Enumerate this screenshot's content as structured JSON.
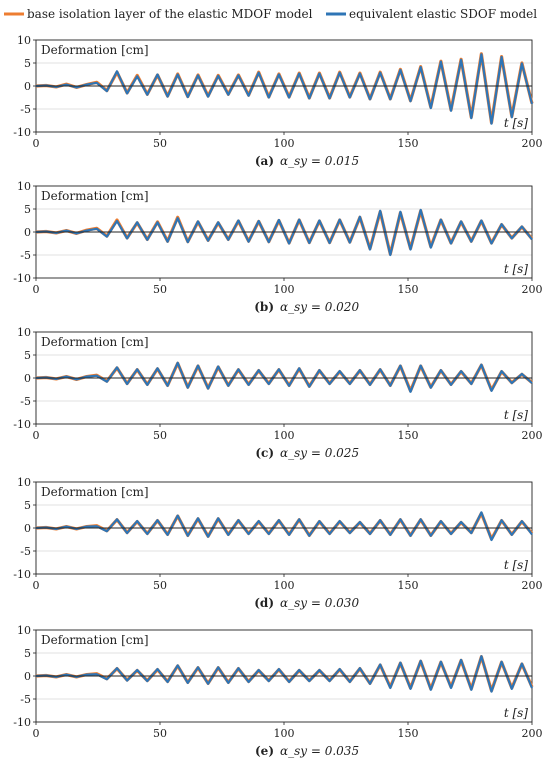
{
  "legend": {
    "series1_label": "base isolation layer of the elastic MDOF model",
    "series2_label": "equivalent elastic SDOF model"
  },
  "colors": {
    "series1": "#ed7d31",
    "series2": "#2e75b6",
    "axis": "#222222",
    "grid": "#d9d9d9"
  },
  "chart_data": [
    {
      "type": "line",
      "panel_label": "Deformation [cm]",
      "time_label": "t [s]",
      "caption_letter": "(a)",
      "caption_param": "α_sy = 0.015",
      "xlim": [
        0,
        200
      ],
      "ylim": [
        -10,
        10
      ],
      "xticks": [
        0,
        50,
        100,
        150,
        200
      ],
      "yticks": [
        10,
        5,
        0,
        -5,
        -10
      ],
      "series": [
        {
          "values": [
            0.0,
            0.1,
            -0.2,
            0.4,
            -0.3,
            0.3,
            0.8,
            -1.0,
            3.0,
            -1.5,
            2.3,
            -1.8,
            2.4,
            -2.2,
            2.6,
            -2.3,
            2.4,
            -2.2,
            2.3,
            -1.8,
            2.4,
            -2.0,
            3.0,
            -2.4,
            2.6,
            -2.4,
            2.8,
            -2.6,
            2.8,
            -2.6,
            3.0,
            -2.4,
            2.8,
            -2.8,
            3.0,
            -2.8,
            3.6,
            -3.2,
            4.2,
            -4.6,
            5.4,
            -5.2,
            5.8,
            -6.8,
            7.0,
            -8.0,
            6.4,
            -6.6,
            5.0,
            -3.8
          ]
        },
        {
          "values": [
            0.0,
            0.1,
            -0.2,
            0.3,
            -0.3,
            0.3,
            0.7,
            -1.1,
            3.2,
            -1.6,
            2.1,
            -1.9,
            2.5,
            -2.3,
            2.5,
            -2.4,
            2.3,
            -2.3,
            2.2,
            -1.9,
            2.3,
            -2.1,
            2.9,
            -2.5,
            2.5,
            -2.5,
            2.7,
            -2.7,
            2.7,
            -2.7,
            2.9,
            -2.5,
            2.7,
            -2.9,
            2.9,
            -2.9,
            3.5,
            -3.3,
            4.1,
            -4.8,
            5.3,
            -5.4,
            5.7,
            -7.0,
            6.9,
            -8.2,
            6.3,
            -6.8,
            4.9,
            -3.9
          ]
        }
      ]
    },
    {
      "type": "line",
      "panel_label": "Deformation [cm]",
      "time_label": "t [s]",
      "caption_letter": "(b)",
      "caption_param": "α_sy = 0.020",
      "xlim": [
        0,
        200
      ],
      "ylim": [
        -10,
        10
      ],
      "xticks": [
        0,
        50,
        100,
        150,
        200
      ],
      "yticks": [
        10,
        5,
        0,
        -5,
        -10
      ],
      "series": [
        {
          "values": [
            0.0,
            0.1,
            -0.2,
            0.3,
            -0.3,
            0.4,
            0.8,
            -0.9,
            2.6,
            -1.3,
            2.0,
            -1.6,
            2.2,
            -2.0,
            3.2,
            -2.1,
            2.2,
            -1.8,
            2.0,
            -1.6,
            2.4,
            -2.0,
            2.3,
            -2.1,
            2.5,
            -2.4,
            2.6,
            -2.3,
            2.4,
            -2.3,
            2.6,
            -2.2,
            3.2,
            -3.6,
            4.4,
            -4.8,
            4.2,
            -3.6,
            4.6,
            -3.2,
            2.6,
            -2.4,
            2.2,
            -2.0,
            2.4,
            -2.4,
            1.6,
            -1.3,
            1.1,
            -1.5
          ]
        },
        {
          "values": [
            0.0,
            0.1,
            -0.2,
            0.3,
            -0.3,
            0.3,
            0.7,
            -1.0,
            2.4,
            -1.4,
            2.1,
            -1.7,
            2.1,
            -2.1,
            3.0,
            -2.2,
            2.3,
            -1.9,
            2.1,
            -1.7,
            2.5,
            -2.1,
            2.4,
            -2.2,
            2.6,
            -2.5,
            2.7,
            -2.4,
            2.5,
            -2.4,
            2.7,
            -2.3,
            3.3,
            -3.8,
            4.6,
            -5.0,
            4.4,
            -3.8,
            4.8,
            -3.4,
            2.7,
            -2.5,
            2.3,
            -2.1,
            2.5,
            -2.5,
            1.7,
            -1.4,
            1.2,
            -1.6
          ]
        }
      ]
    },
    {
      "type": "line",
      "panel_label": "Deformation [cm]",
      "time_label": "t [s]",
      "caption_letter": "(c)",
      "caption_param": "α_sy = 0.025",
      "xlim": [
        0,
        200
      ],
      "ylim": [
        -10,
        10
      ],
      "xticks": [
        0,
        50,
        100,
        150,
        200
      ],
      "yticks": [
        10,
        5,
        0,
        -5,
        -10
      ],
      "series": [
        {
          "values": [
            0.0,
            0.1,
            -0.2,
            0.3,
            -0.3,
            0.3,
            0.6,
            -0.7,
            2.2,
            -1.2,
            1.8,
            -1.4,
            2.0,
            -1.6,
            3.2,
            -2.0,
            2.6,
            -2.2,
            2.4,
            -1.6,
            1.8,
            -1.4,
            1.6,
            -1.2,
            1.8,
            -1.6,
            2.0,
            -1.8,
            1.6,
            -1.2,
            1.4,
            -1.2,
            1.6,
            -1.4,
            1.8,
            -1.6,
            2.6,
            -2.8,
            2.6,
            -2.0,
            1.6,
            -1.4,
            1.4,
            -1.2,
            2.8,
            -2.6,
            1.4,
            -1.0,
            0.8,
            -1.0
          ]
        },
        {
          "values": [
            0.0,
            0.1,
            -0.2,
            0.3,
            -0.3,
            0.3,
            0.5,
            -0.8,
            2.3,
            -1.3,
            1.9,
            -1.5,
            2.1,
            -1.7,
            3.3,
            -2.1,
            2.7,
            -2.3,
            2.5,
            -1.7,
            1.9,
            -1.5,
            1.7,
            -1.3,
            1.9,
            -1.7,
            2.1,
            -1.9,
            1.7,
            -1.3,
            1.5,
            -1.3,
            1.7,
            -1.5,
            1.9,
            -1.7,
            2.7,
            -3.0,
            2.7,
            -2.1,
            1.7,
            -1.5,
            1.5,
            -1.3,
            2.9,
            -2.8,
            1.5,
            -1.1,
            0.9,
            -1.1
          ]
        }
      ]
    },
    {
      "type": "line",
      "panel_label": "Deformation [cm]",
      "time_label": "t [s]",
      "caption_letter": "(d)",
      "caption_param": "α_sy = 0.030",
      "xlim": [
        0,
        200
      ],
      "ylim": [
        -10,
        10
      ],
      "xticks": [
        0,
        50,
        100,
        150,
        200
      ],
      "yticks": [
        10,
        5,
        0,
        -5,
        -10
      ],
      "series": [
        {
          "values": [
            0.0,
            0.1,
            -0.2,
            0.3,
            -0.2,
            0.3,
            0.5,
            -0.6,
            1.8,
            -1.0,
            1.4,
            -1.2,
            1.6,
            -1.4,
            2.6,
            -1.6,
            2.0,
            -1.8,
            2.0,
            -1.4,
            1.6,
            -1.2,
            1.4,
            -1.2,
            1.6,
            -1.4,
            1.8,
            -1.6,
            1.4,
            -1.2,
            1.4,
            -1.0,
            1.2,
            -1.2,
            1.6,
            -1.4,
            1.8,
            -1.6,
            1.8,
            -1.6,
            1.4,
            -1.2,
            1.2,
            -1.0,
            3.2,
            -2.4,
            1.6,
            -1.4,
            1.4,
            -1.2
          ]
        },
        {
          "values": [
            0.0,
            0.1,
            -0.2,
            0.3,
            -0.2,
            0.3,
            0.4,
            -0.7,
            1.9,
            -1.1,
            1.5,
            -1.3,
            1.7,
            -1.5,
            2.7,
            -1.7,
            2.1,
            -1.9,
            2.1,
            -1.5,
            1.7,
            -1.3,
            1.5,
            -1.3,
            1.7,
            -1.5,
            1.9,
            -1.7,
            1.5,
            -1.3,
            1.5,
            -1.1,
            1.3,
            -1.3,
            1.7,
            -1.5,
            1.9,
            -1.7,
            1.9,
            -1.7,
            1.5,
            -1.3,
            1.3,
            -1.1,
            3.4,
            -2.6,
            1.7,
            -1.5,
            1.5,
            -1.4
          ]
        }
      ]
    },
    {
      "type": "line",
      "panel_label": "Deformation [cm]",
      "time_label": "t [s]",
      "caption_letter": "(e)",
      "caption_param": "α_sy = 0.035",
      "xlim": [
        0,
        200
      ],
      "ylim": [
        -10,
        10
      ],
      "xticks": [
        0,
        50,
        100,
        150,
        200
      ],
      "yticks": [
        10,
        5,
        0,
        -5,
        -10
      ],
      "series": [
        {
          "values": [
            0.0,
            0.1,
            -0.2,
            0.3,
            -0.2,
            0.3,
            0.5,
            -0.6,
            1.6,
            -0.9,
            1.2,
            -1.0,
            1.4,
            -1.2,
            2.2,
            -1.4,
            1.8,
            -1.6,
            1.8,
            -1.4,
            1.6,
            -1.2,
            1.2,
            -1.0,
            1.4,
            -1.2,
            1.2,
            -1.0,
            1.2,
            -1.0,
            1.4,
            -1.2,
            1.6,
            -1.6,
            2.4,
            -2.4,
            2.8,
            -2.6,
            3.2,
            -2.8,
            3.0,
            -2.4,
            3.4,
            -2.8,
            4.2,
            -3.2,
            3.0,
            -2.6,
            2.6,
            -2.4
          ]
        },
        {
          "values": [
            0.0,
            0.1,
            -0.2,
            0.3,
            -0.2,
            0.3,
            0.4,
            -0.7,
            1.7,
            -1.0,
            1.3,
            -1.1,
            1.5,
            -1.3,
            2.3,
            -1.5,
            1.9,
            -1.7,
            1.9,
            -1.5,
            1.7,
            -1.3,
            1.3,
            -1.1,
            1.5,
            -1.3,
            1.3,
            -1.1,
            1.3,
            -1.1,
            1.5,
            -1.3,
            1.7,
            -1.7,
            2.5,
            -2.6,
            2.9,
            -2.8,
            3.3,
            -3.0,
            3.1,
            -2.6,
            3.5,
            -3.0,
            4.3,
            -3.4,
            3.1,
            -2.8,
            2.7,
            -2.6
          ]
        }
      ]
    }
  ]
}
